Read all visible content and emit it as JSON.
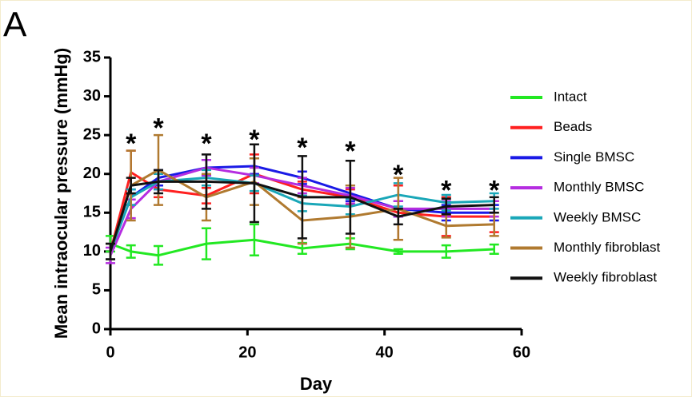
{
  "panel_label": "A",
  "chart_data": {
    "type": "line",
    "x_label": "Day",
    "y_label": "Mean intraocular pressure (mmHg)",
    "x": [
      0,
      3,
      7,
      14,
      21,
      28,
      35,
      42,
      49,
      56
    ],
    "xlim": [
      0,
      60
    ],
    "xticks": [
      0,
      20,
      40,
      60
    ],
    "ylim": [
      0,
      35
    ],
    "yticks": [
      0,
      5,
      10,
      15,
      20,
      25,
      30,
      35
    ],
    "legend": "right",
    "series": [
      {
        "name": "Intact",
        "color": "#22e822",
        "values": [
          11,
          10,
          9.5,
          11,
          11.5,
          10.4,
          11,
          10,
          10,
          10.3
        ],
        "errors": [
          1,
          0.8,
          1.2,
          2,
          2,
          0.7,
          0.7,
          0.3,
          0.8,
          0.6
        ]
      },
      {
        "name": "Beads",
        "color": "#ff2020",
        "values": [
          10,
          20.2,
          18,
          17.2,
          20,
          18,
          17,
          15,
          14.5,
          14.5
        ],
        "errors": [
          1,
          2.8,
          1,
          1,
          2.5,
          1,
          1,
          3.5,
          2.5,
          2
        ]
      },
      {
        "name": "Single BMSC",
        "color": "#1a1ae6",
        "values": [
          10,
          17,
          19.5,
          20.8,
          21,
          19.5,
          17.5,
          15.5,
          15,
          15
        ],
        "errors": [
          1,
          1,
          1,
          1,
          1,
          0.8,
          1,
          1,
          1,
          1
        ]
      },
      {
        "name": "Monthly BMSC",
        "color": "#b52de0",
        "values": [
          9.5,
          15.5,
          19,
          20.8,
          19.8,
          18.5,
          17.2,
          15.5,
          15.5,
          15.5
        ],
        "errors": [
          1,
          1.2,
          1,
          1,
          1,
          1,
          1,
          1,
          1,
          1
        ]
      },
      {
        "name": "Weekly BMSC",
        "color": "#1aa7b8",
        "values": [
          10,
          17,
          19,
          19.5,
          18.8,
          16.2,
          15.8,
          17.3,
          16.3,
          16.5
        ],
        "errors": [
          1,
          1,
          1,
          1,
          1,
          1,
          1,
          1.5,
          1,
          1
        ]
      },
      {
        "name": "Monthly fibroblast",
        "color": "#b07a30",
        "values": [
          10,
          18.5,
          20.5,
          17,
          19,
          14,
          14.5,
          15.5,
          13.3,
          13.5
        ],
        "errors": [
          1,
          4.5,
          4.5,
          3,
          3,
          3,
          4,
          4,
          1.5,
          1.5
        ]
      },
      {
        "name": "Weekly fibroblast",
        "color": "#111111",
        "values": [
          10,
          18.5,
          19,
          19,
          18.8,
          17,
          17,
          14.5,
          15.8,
          16
        ],
        "errors": [
          1,
          1,
          1.5,
          3.5,
          5,
          5.3,
          4.7,
          1,
          1,
          1
        ]
      }
    ],
    "annotations": [
      {
        "text": "*",
        "x": 3,
        "y": 24.5
      },
      {
        "text": "*",
        "x": 7,
        "y": 26.5
      },
      {
        "text": "*",
        "x": 14,
        "y": 24.5
      },
      {
        "text": "*",
        "x": 21,
        "y": 25
      },
      {
        "text": "*",
        "x": 28,
        "y": 24
      },
      {
        "text": "*",
        "x": 35,
        "y": 23.5
      },
      {
        "text": "*",
        "x": 42,
        "y": 20.5
      },
      {
        "text": "*",
        "x": 49,
        "y": 18.5
      },
      {
        "text": "*",
        "x": 56,
        "y": 18.5
      }
    ]
  }
}
